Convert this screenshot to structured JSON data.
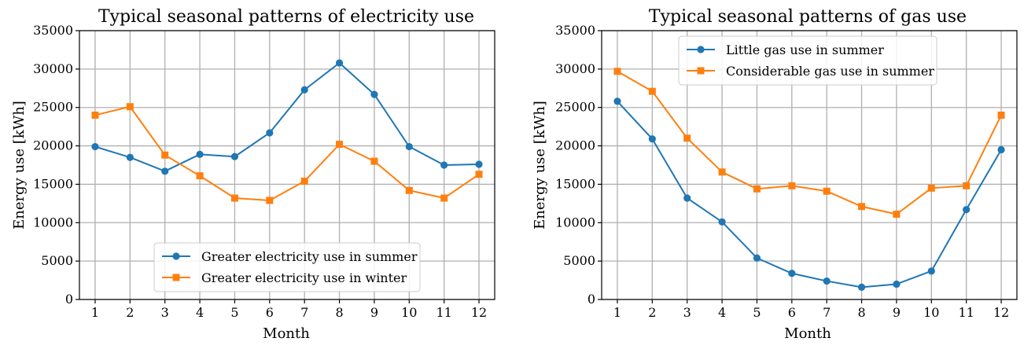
{
  "colors": {
    "blue": "#1f77b4",
    "orange": "#ff7f0e"
  },
  "chart_data": [
    {
      "type": "line",
      "title": "Typical seasonal patterns of electricity use",
      "xlabel": "Month",
      "ylabel": "Energy use [kWh]",
      "x": [
        1,
        2,
        3,
        4,
        5,
        6,
        7,
        8,
        9,
        10,
        11,
        12
      ],
      "xticks": [
        "1",
        "2",
        "3",
        "4",
        "5",
        "6",
        "7",
        "8",
        "9",
        "10",
        "11",
        "12"
      ],
      "ylim": [
        0,
        35000
      ],
      "yticks": [
        "0",
        "5000",
        "10000",
        "15000",
        "20000",
        "25000",
        "30000",
        "35000"
      ],
      "grid": true,
      "legend_position": "lower-center",
      "series": [
        {
          "name": "Greater electricity use in summer",
          "color": "#1f77b4",
          "marker": "circle",
          "values": [
            19900,
            18500,
            16700,
            18900,
            18600,
            21700,
            27300,
            30800,
            26700,
            19900,
            17500,
            17600
          ]
        },
        {
          "name": "Greater electricity use in winter",
          "color": "#ff7f0e",
          "marker": "square",
          "values": [
            24000,
            25100,
            18800,
            16100,
            13200,
            12900,
            15400,
            20200,
            18000,
            14200,
            13200,
            16300
          ]
        }
      ]
    },
    {
      "type": "line",
      "title": "Typical seasonal patterns of gas use",
      "xlabel": "Month",
      "ylabel": "Energy use [kWh]",
      "x": [
        1,
        2,
        3,
        4,
        5,
        6,
        7,
        8,
        9,
        10,
        11,
        12
      ],
      "xticks": [
        "1",
        "2",
        "3",
        "4",
        "5",
        "6",
        "7",
        "8",
        "9",
        "10",
        "11",
        "12"
      ],
      "ylim": [
        0,
        35000
      ],
      "yticks": [
        "0",
        "5000",
        "10000",
        "15000",
        "20000",
        "25000",
        "30000",
        "35000"
      ],
      "grid": true,
      "legend_position": "upper-center",
      "series": [
        {
          "name": "Little gas use in summer",
          "color": "#1f77b4",
          "marker": "circle",
          "values": [
            25800,
            20900,
            13200,
            10100,
            5400,
            3400,
            2400,
            1600,
            2000,
            3700,
            11700,
            19500
          ]
        },
        {
          "name": "Considerable gas use in summer",
          "color": "#ff7f0e",
          "marker": "square",
          "values": [
            29700,
            27100,
            21000,
            16600,
            14400,
            14800,
            14100,
            12100,
            11100,
            14500,
            14800,
            24000
          ]
        }
      ]
    }
  ]
}
